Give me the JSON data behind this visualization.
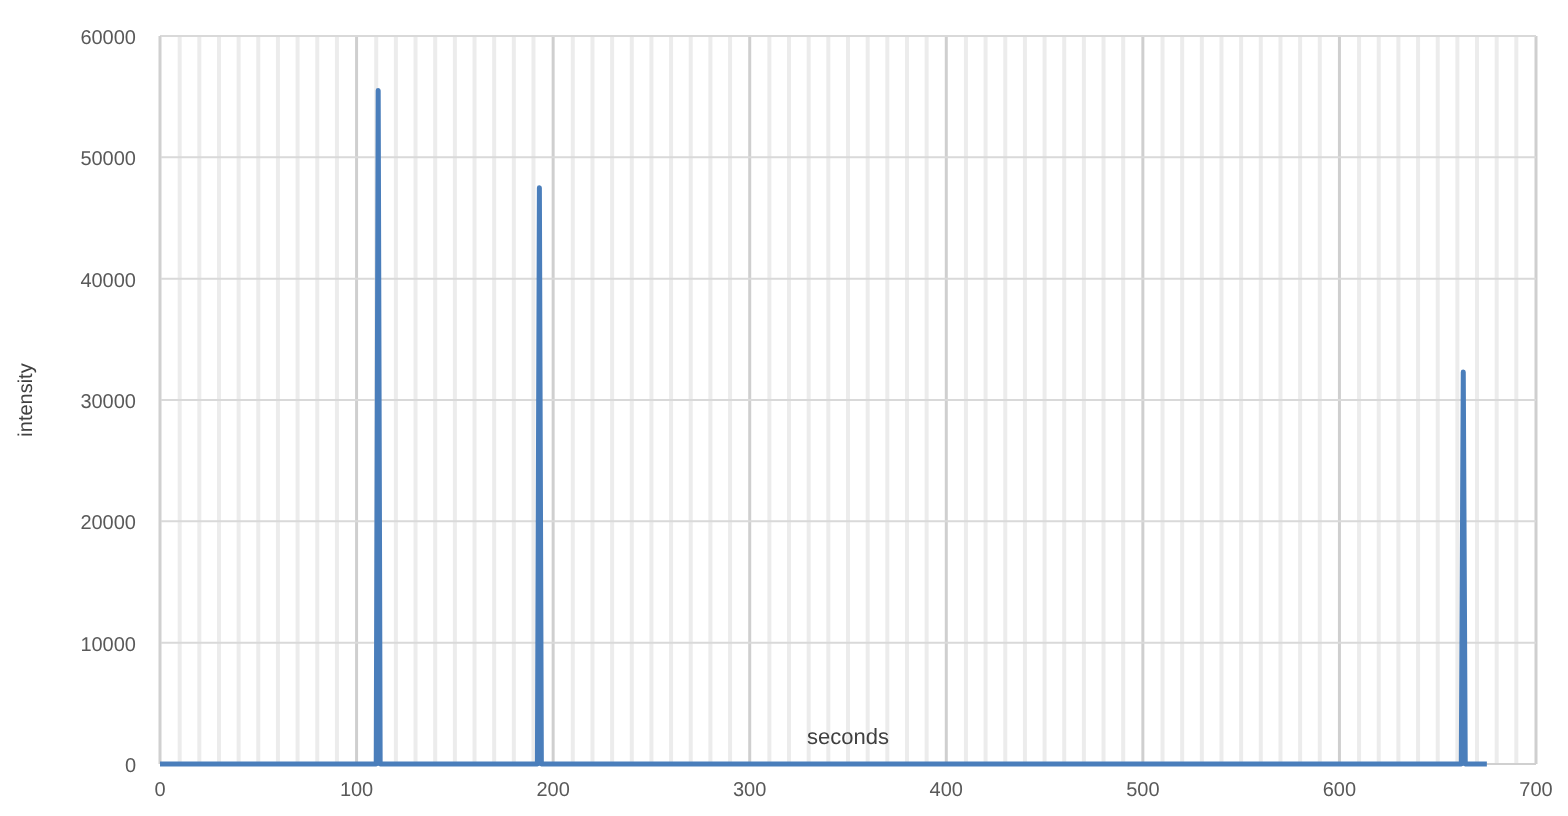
{
  "chart_data": {
    "type": "line",
    "xlabel": "seconds",
    "ylabel": "intensity",
    "x": [
      0,
      110,
      111,
      112,
      192,
      193,
      194,
      662,
      663,
      664,
      675
    ],
    "series": [
      {
        "color": "#4a7ebb",
        "values": [
          0,
          0,
          55500,
          0,
          0,
          47500,
          0,
          0,
          32300,
          0,
          0
        ]
      }
    ],
    "xlim": [
      0,
      700
    ],
    "ylim": [
      0,
      60000
    ],
    "xticks": [
      0,
      {
        "value": 10,
        "label": null
      },
      {
        "value": 20,
        "label": null
      },
      {
        "value": 30,
        "label": null
      },
      {
        "value": 40,
        "label": null
      },
      {
        "value": 50,
        "label": null
      },
      {
        "value": 60,
        "label": null
      },
      {
        "value": 70,
        "label": null
      },
      {
        "value": 80,
        "label": null
      },
      {
        "value": 90,
        "label": null
      },
      100,
      {
        "value": 110,
        "label": null
      },
      {
        "value": 120,
        "label": null
      },
      {
        "value": 130,
        "label": null
      },
      {
        "value": 140,
        "label": null
      },
      {
        "value": 150,
        "label": null
      },
      {
        "value": 160,
        "label": null
      },
      {
        "value": 170,
        "label": null
      },
      {
        "value": 180,
        "label": null
      },
      {
        "value": 190,
        "label": null
      },
      200,
      {
        "value": 210,
        "label": null
      },
      {
        "value": 220,
        "label": null
      },
      {
        "value": 230,
        "label": null
      },
      {
        "value": 240,
        "label": null
      },
      {
        "value": 250,
        "label": null
      },
      {
        "value": 260,
        "label": null
      },
      {
        "value": 270,
        "label": null
      },
      {
        "value": 280,
        "label": null
      },
      {
        "value": 290,
        "label": null
      },
      300,
      {
        "value": 310,
        "label": null
      },
      {
        "value": 320,
        "label": null
      },
      {
        "value": 330,
        "label": null
      },
      {
        "value": 340,
        "label": null
      },
      {
        "value": 350,
        "label": null
      },
      {
        "value": 360,
        "label": null
      },
      {
        "value": 370,
        "label": null
      },
      {
        "value": 380,
        "label": null
      },
      {
        "value": 390,
        "label": null
      },
      400,
      {
        "value": 410,
        "label": null
      },
      {
        "value": 420,
        "label": null
      },
      {
        "value": 430,
        "label": null
      },
      {
        "value": 440,
        "label": null
      },
      {
        "value": 450,
        "label": null
      },
      {
        "value": 460,
        "label": null
      },
      {
        "value": 470,
        "label": null
      },
      {
        "value": 480,
        "label": null
      },
      {
        "value": 490,
        "label": null
      },
      500,
      {
        "value": 510,
        "label": null
      },
      {
        "value": 520,
        "label": null
      },
      {
        "value": 530,
        "label": null
      },
      {
        "value": 540,
        "label": null
      },
      {
        "value": 550,
        "label": null
      },
      {
        "value": 560,
        "label": null
      },
      {
        "value": 570,
        "label": null
      },
      {
        "value": 580,
        "label": null
      },
      {
        "value": 590,
        "label": null
      },
      600,
      {
        "value": 610,
        "label": null
      },
      {
        "value": 620,
        "label": null
      },
      {
        "value": 630,
        "label": null
      },
      {
        "value": 640,
        "label": null
      },
      {
        "value": 650,
        "label": null
      },
      {
        "value": 660,
        "label": null
      },
      {
        "value": 670,
        "label": null
      },
      {
        "value": 680,
        "label": null
      },
      {
        "value": 690,
        "label": null
      },
      700
    ],
    "yticks": [
      0,
      10000,
      20000,
      30000,
      40000,
      50000,
      60000
    ],
    "grid": true
  }
}
